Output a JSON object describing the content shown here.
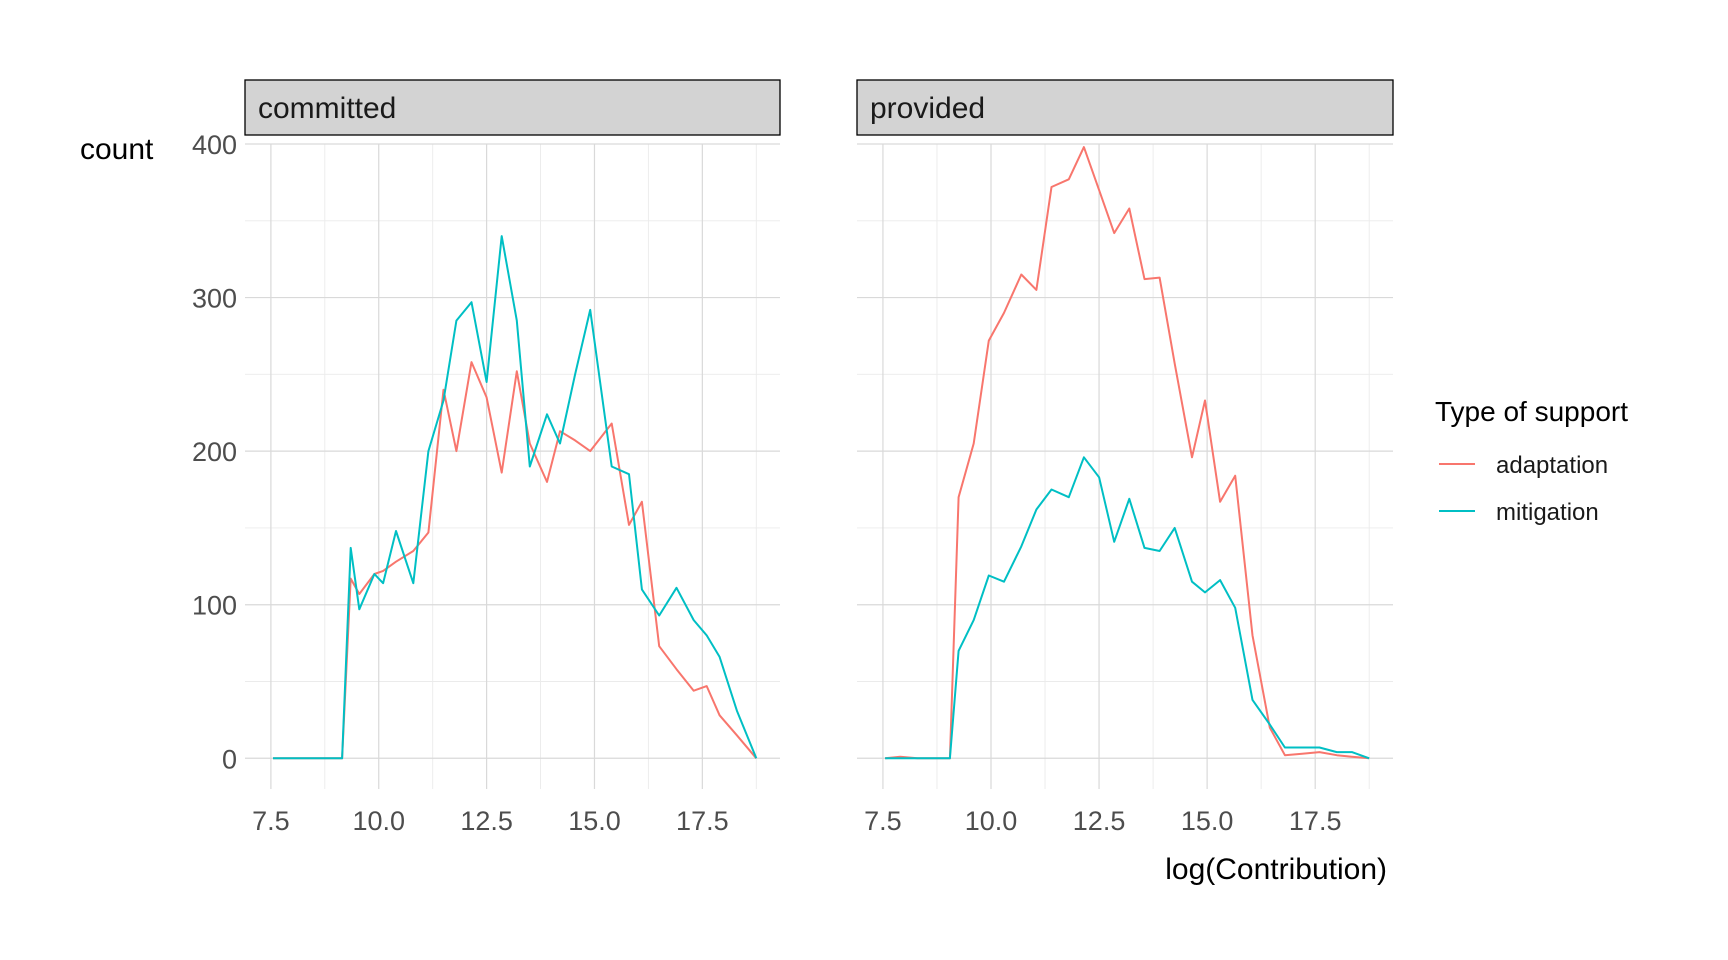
{
  "chart_data": {
    "type": "line",
    "xlabel": "log(Contribution)",
    "ylabel": "count",
    "xlim": [
      6.9,
      19.3
    ],
    "ylim": [
      -20,
      400
    ],
    "x_ticks": [
      7.5,
      10.0,
      12.5,
      15.0,
      17.5
    ],
    "x_tick_labels": [
      "7.5",
      "10.0",
      "12.5",
      "15.0",
      "17.5"
    ],
    "y_ticks": [
      0,
      100,
      200,
      300,
      400
    ],
    "y_tick_labels": [
      "0",
      "100",
      "200",
      "300",
      "400"
    ],
    "grid": true,
    "legend": {
      "title": "Type of support",
      "position": "right",
      "entries": [
        {
          "name": "adaptation",
          "color": "#F8766D"
        },
        {
          "name": "mitigation",
          "color": "#00BFC4"
        }
      ]
    },
    "panels": [
      {
        "strip": "committed",
        "series": [
          {
            "name": "adaptation",
            "color": "#F8766D",
            "x": [
              7.55,
              7.95,
              8.35,
              8.75,
              9.15,
              9.35,
              9.55,
              9.9,
              10.1,
              10.4,
              10.8,
              11.15,
              11.5,
              11.8,
              12.15,
              12.5,
              12.85,
              13.2,
              13.5,
              13.9,
              14.2,
              14.55,
              14.9,
              15.4,
              15.8,
              16.1,
              16.5,
              16.9,
              17.3,
              17.6,
              17.9,
              18.3,
              18.75
            ],
            "y": [
              0,
              0,
              0,
              0,
              0,
              117,
              107,
              120,
              122,
              128,
              135,
              147,
              240,
              200,
              258,
              235,
              186,
              252,
              205,
              180,
              213,
              207,
              200,
              218,
              152,
              167,
              73,
              58,
              44,
              47,
              28,
              15,
              0
            ]
          },
          {
            "name": "mitigation",
            "color": "#00BFC4",
            "x": [
              7.55,
              7.95,
              8.35,
              8.75,
              9.15,
              9.35,
              9.55,
              9.9,
              10.1,
              10.4,
              10.8,
              11.15,
              11.5,
              11.8,
              12.15,
              12.5,
              12.85,
              13.2,
              13.5,
              13.9,
              14.2,
              14.55,
              14.9,
              15.4,
              15.8,
              16.1,
              16.5,
              16.9,
              17.3,
              17.6,
              17.9,
              18.3,
              18.75
            ],
            "y": [
              0,
              0,
              0,
              0,
              0,
              137,
              97,
              120,
              114,
              148,
              114,
              200,
              233,
              285,
              297,
              245,
              340,
              285,
              190,
              224,
              205,
              250,
              292,
              190,
              185,
              110,
              93,
              111,
              90,
              80,
              66,
              31,
              0
            ]
          }
        ]
      },
      {
        "strip": "provided",
        "series": [
          {
            "name": "adaptation",
            "color": "#F8766D",
            "x": [
              7.55,
              7.9,
              8.3,
              8.7,
              9.05,
              9.25,
              9.6,
              9.95,
              10.3,
              10.7,
              11.05,
              11.4,
              11.8,
              12.15,
              12.5,
              12.85,
              13.2,
              13.55,
              13.9,
              14.25,
              14.65,
              14.95,
              15.3,
              15.65,
              16.05,
              16.45,
              16.8,
              17.2,
              17.6,
              18.0,
              18.35,
              18.75
            ],
            "y": [
              0,
              1,
              0,
              0,
              0,
              170,
              205,
              272,
              290,
              315,
              305,
              372,
              377,
              398,
              370,
              342,
              358,
              312,
              313,
              257,
              196,
              233,
              167,
              184,
              80,
              20,
              2,
              3,
              4,
              2,
              1,
              0
            ]
          },
          {
            "name": "mitigation",
            "color": "#00BFC4",
            "x": [
              7.55,
              7.9,
              8.3,
              8.7,
              9.05,
              9.25,
              9.6,
              9.95,
              10.3,
              10.7,
              11.05,
              11.4,
              11.8,
              12.15,
              12.5,
              12.85,
              13.2,
              13.55,
              13.9,
              14.25,
              14.65,
              14.95,
              15.3,
              15.65,
              16.05,
              16.45,
              16.8,
              17.2,
              17.6,
              18.0,
              18.35,
              18.75
            ],
            "y": [
              0,
              0,
              0,
              0,
              0,
              70,
              90,
              119,
              115,
              138,
              162,
              175,
              170,
              196,
              183,
              141,
              169,
              137,
              135,
              150,
              115,
              108,
              116,
              98,
              38,
              22,
              7,
              7,
              7,
              4,
              4,
              0
            ]
          }
        ]
      }
    ]
  }
}
